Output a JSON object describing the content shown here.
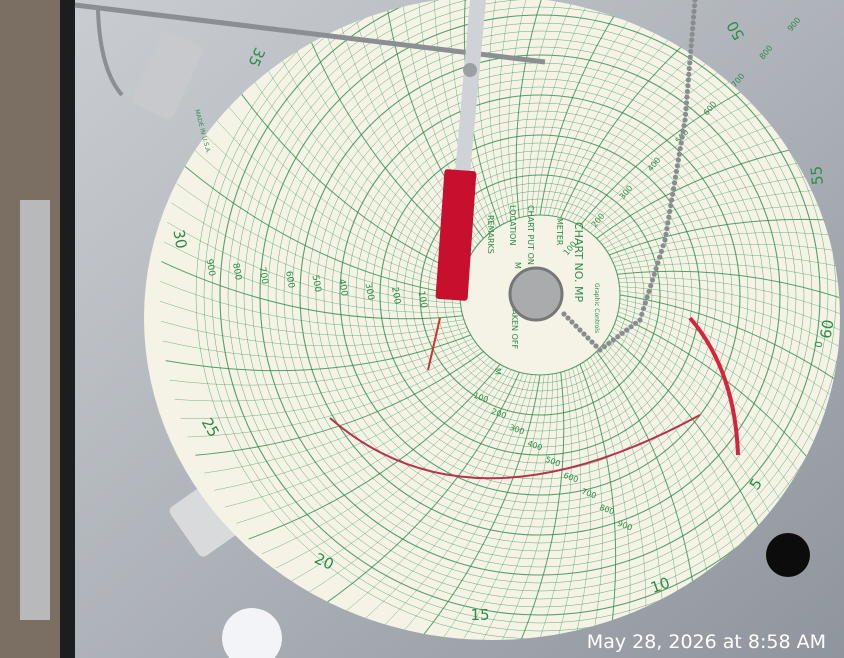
{
  "timestamp": "May 28, 2026 at 8:58 AM",
  "chart": {
    "brand": "Graphic Controls",
    "chart_no": "CHART NO. MP",
    "form_fields": [
      "METER",
      "CHART PUT ON",
      "LOCATION",
      "REMARKS",
      "TAKEN OFF",
      "M",
      "M"
    ],
    "made_in": "MADE IN U.S.A.",
    "rim_labels": [
      "60",
      "0",
      "5",
      "10",
      "15",
      "20",
      "25",
      "30",
      "35",
      "50",
      "55"
    ],
    "scale_labels": [
      100,
      200,
      300,
      400,
      500,
      600,
      700,
      800,
      900
    ]
  }
}
